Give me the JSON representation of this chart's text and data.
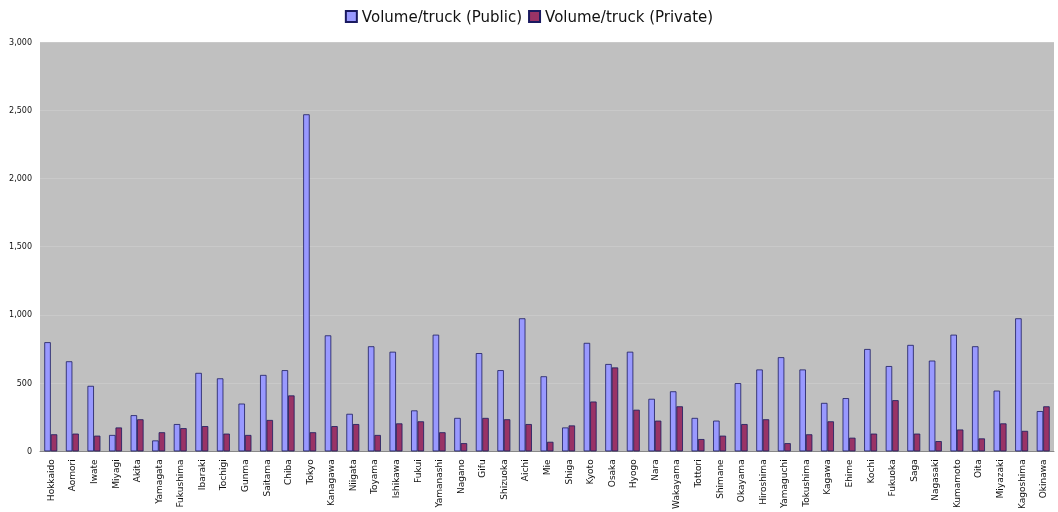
{
  "chart_data": {
    "type": "bar",
    "categories": [
      "Hokkaido",
      "Aomori",
      "Iwate",
      "Miyagi",
      "Akita",
      "Yamagata",
      "Fukushima",
      "Ibaraki",
      "Tochigi",
      "Gunma",
      "Saitama",
      "Chiba",
      "Tokyo",
      "Kanagawa",
      "Niigata",
      "Toyama",
      "Ishikawa",
      "Fukui",
      "Yamanashi",
      "Nagano",
      "Gifu",
      "Shizuoka",
      "Aichi",
      "Mie",
      "Shiga",
      "Kyoto",
      "Osaka",
      "Hyogo",
      "Nara",
      "Wakayama",
      "Tottori",
      "Shimane",
      "Okayama",
      "Hiroshima",
      "Yamaguchi",
      "Tokushima",
      "Kagawa",
      "Ehime",
      "Kochi",
      "Fukuoka",
      "Saga",
      "Nagasaki",
      "Kumamoto",
      "Oita",
      "Miyazaki",
      "Kagoshima",
      "Okinawa"
    ],
    "series": [
      {
        "name": "Volume/truck (Public)",
        "color": "#9999ff",
        "values": [
          800,
          660,
          480,
          120,
          265,
          80,
          200,
          575,
          535,
          350,
          560,
          595,
          2470,
          850,
          275,
          770,
          730,
          300,
          855,
          245,
          720,
          595,
          975,
          550,
          175,
          795,
          640,
          730,
          385,
          440,
          245,
          225,
          500,
          600,
          690,
          600,
          355,
          390,
          750,
          625,
          780,
          665,
          855,
          770,
          445,
          975,
          295
        ]
      },
      {
        "name": "Volume/truck (Private)",
        "color": "#993366",
        "values": [
          125,
          130,
          115,
          175,
          235,
          140,
          170,
          185,
          130,
          120,
          230,
          410,
          140,
          185,
          200,
          120,
          205,
          220,
          140,
          60,
          245,
          235,
          200,
          70,
          190,
          365,
          615,
          305,
          225,
          330,
          90,
          115,
          200,
          235,
          60,
          125,
          220,
          100,
          130,
          375,
          130,
          75,
          160,
          95,
          205,
          150,
          330
        ]
      }
    ],
    "ylim": [
      0,
      3000
    ],
    "yticks": [
      0,
      500,
      {
        "value": 1000,
        "label": "1,000"
      },
      {
        "value": 1500,
        "label": "1,500"
      },
      {
        "value": 2000,
        "label": "2,000"
      },
      {
        "value": 2500,
        "label": "2,500"
      },
      {
        "value": 3000,
        "label": "3,000"
      }
    ],
    "grid": "y",
    "legend": "top"
  }
}
